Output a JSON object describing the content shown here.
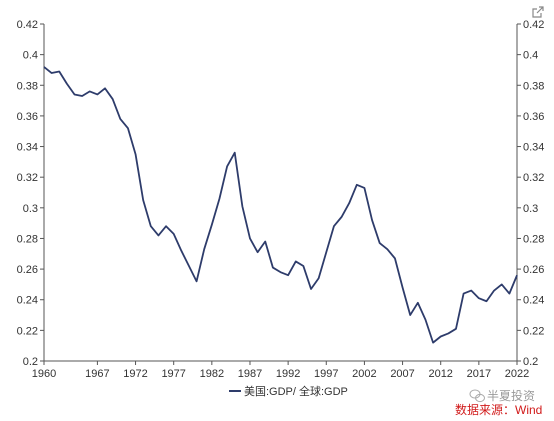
{
  "chart_data": {
    "type": "line",
    "title": "",
    "xlabel": "",
    "ylabel": "",
    "ylim": [
      0.2,
      0.42
    ],
    "y_ticks": [
      "0.2",
      "0.22",
      "0.24",
      "0.26",
      "0.28",
      "0.3",
      "0.32",
      "0.34",
      "0.36",
      "0.38",
      "0.4",
      "0.42"
    ],
    "x_ticks": [
      "1960",
      "1967",
      "1972",
      "1977",
      "1982",
      "1987",
      "1992",
      "1997",
      "2002",
      "2007",
      "2012",
      "2017",
      "2022"
    ],
    "grid": false,
    "dual_y_axis": true,
    "legend_position": "bottom-center",
    "series": [
      {
        "name": "美国:GDP/ 全球:GDP",
        "color": "#2e3c6b",
        "x": [
          1960,
          1961,
          1962,
          1963,
          1964,
          1965,
          1966,
          1967,
          1968,
          1969,
          1970,
          1971,
          1972,
          1973,
          1974,
          1975,
          1976,
          1977,
          1978,
          1979,
          1980,
          1981,
          1982,
          1983,
          1984,
          1985,
          1986,
          1987,
          1988,
          1989,
          1990,
          1991,
          1992,
          1993,
          1994,
          1995,
          1996,
          1997,
          1998,
          1999,
          2000,
          2001,
          2002,
          2003,
          2004,
          2005,
          2006,
          2007,
          2008,
          2009,
          2010,
          2011,
          2012,
          2013,
          2014,
          2015,
          2016,
          2017,
          2018,
          2019,
          2020,
          2021,
          2022
        ],
        "values": [
          0.392,
          0.388,
          0.389,
          0.381,
          0.374,
          0.373,
          0.376,
          0.374,
          0.378,
          0.371,
          0.358,
          0.352,
          0.335,
          0.305,
          0.288,
          0.282,
          0.288,
          0.283,
          0.272,
          0.262,
          0.252,
          0.273,
          0.289,
          0.306,
          0.327,
          0.336,
          0.301,
          0.28,
          0.271,
          0.278,
          0.261,
          0.258,
          0.256,
          0.265,
          0.262,
          0.247,
          0.254,
          0.271,
          0.288,
          0.294,
          0.303,
          0.315,
          0.313,
          0.292,
          0.277,
          0.273,
          0.267,
          0.248,
          0.23,
          0.238,
          0.227,
          0.212,
          0.216,
          0.218,
          0.221,
          0.244,
          0.246,
          0.241,
          0.239,
          0.246,
          0.25,
          0.244,
          0.256
        ]
      }
    ]
  },
  "watermark": {
    "text": "半夏投资",
    "source_label": "数据来源：Wind",
    "source_color": "#d11a1a"
  },
  "toolbar": {
    "export_icon": "open-external-icon"
  }
}
